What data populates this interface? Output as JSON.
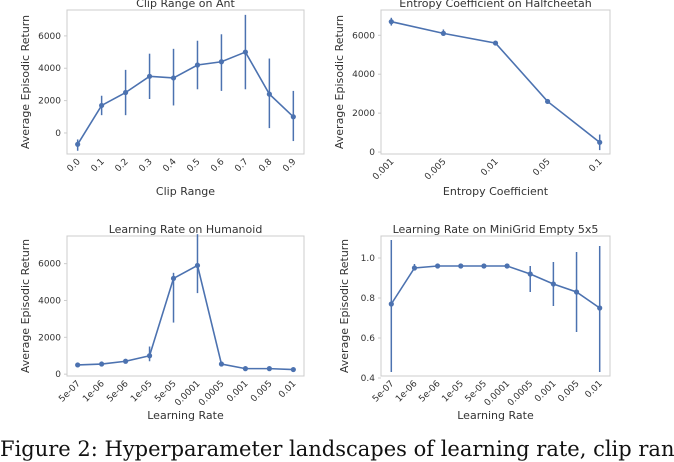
{
  "colors": {
    "series": "#4c72b0",
    "frame": "#cccccc",
    "text": "#333333"
  },
  "chart_data": [
    {
      "type": "line",
      "title": "Clip Range on Ant",
      "xlabel": "Clip Range",
      "ylabel": "Average Episodic Return",
      "categories": [
        "0.0",
        "0.1",
        "0.2",
        "0.3",
        "0.4",
        "0.5",
        "0.6",
        "0.7",
        "0.8",
        "0.9"
      ],
      "values": [
        -700,
        1700,
        2500,
        3500,
        3400,
        4200,
        4400,
        5000,
        2400,
        1000
      ],
      "err_low": [
        -1100,
        1100,
        1100,
        2100,
        1700,
        2700,
        2600,
        2700,
        300,
        -500
      ],
      "err_high": [
        -400,
        2300,
        3900,
        4900,
        5200,
        5700,
        6100,
        7300,
        4600,
        2600
      ],
      "yticks": [
        0,
        2000,
        4000,
        6000
      ],
      "ylim": [
        -1300,
        7600
      ],
      "grid": false
    },
    {
      "type": "line",
      "title": "Entropy Coefficient on Halfcheetah",
      "xlabel": "Entropy Coefficient",
      "ylabel": "Average Episodic Return",
      "categories": [
        "0.001",
        "0.005",
        "0.01",
        "0.05",
        "0.1"
      ],
      "values": [
        6700,
        6100,
        5600,
        2600,
        500
      ],
      "err_low": [
        6500,
        6000,
        5600,
        2600,
        100
      ],
      "err_high": [
        6900,
        6300,
        5700,
        2700,
        900
      ],
      "yticks": [
        0,
        2000,
        4000,
        6000
      ],
      "ylim": [
        -100,
        7300
      ],
      "grid": false
    },
    {
      "type": "line",
      "title": "Learning Rate on Humanoid",
      "xlabel": "Learning Rate",
      "ylabel": "Average Episodic Return",
      "categories": [
        "5e-07",
        "1e-06",
        "5e-06",
        "1e-05",
        "5e-05",
        "0.0001",
        "0.0005",
        "0.001",
        "0.005",
        "0.01"
      ],
      "values": [
        500,
        550,
        700,
        1000,
        5200,
        5900,
        550,
        300,
        300,
        250
      ],
      "err_low": [
        400,
        450,
        600,
        700,
        2800,
        4400,
        450,
        200,
        200,
        150
      ],
      "err_high": [
        600,
        650,
        800,
        1500,
        5500,
        7600,
        650,
        400,
        400,
        350
      ],
      "yticks": [
        0,
        2000,
        4000,
        6000
      ],
      "ylim": [
        -100,
        7500
      ],
      "grid": false
    },
    {
      "type": "line",
      "title": "Learning Rate on MiniGrid Empty 5x5",
      "xlabel": "Learning Rate",
      "ylabel": "Average Episodic Return",
      "categories": [
        "5e-07",
        "1e-06",
        "5e-06",
        "1e-05",
        "5e-05",
        "0.0001",
        "0.0005",
        "0.001",
        "0.005",
        "0.01"
      ],
      "values": [
        0.77,
        0.95,
        0.96,
        0.96,
        0.96,
        0.96,
        0.92,
        0.87,
        0.83,
        0.75
      ],
      "err_low": [
        0.43,
        0.94,
        0.95,
        0.95,
        0.95,
        0.95,
        0.83,
        0.76,
        0.63,
        0.43
      ],
      "err_high": [
        1.09,
        0.97,
        0.97,
        0.97,
        0.97,
        0.97,
        0.96,
        0.98,
        1.03,
        1.06
      ],
      "yticks": [
        0.4,
        0.6,
        0.8,
        1.0
      ],
      "ytick_labels": [
        "0.4",
        "0.6",
        "0.8",
        "1.0"
      ],
      "ylim": [
        0.41,
        1.11
      ],
      "grid": false
    }
  ],
  "caption": "Figure 2: Hyperparameter landscapes of learning rate, clip ran"
}
